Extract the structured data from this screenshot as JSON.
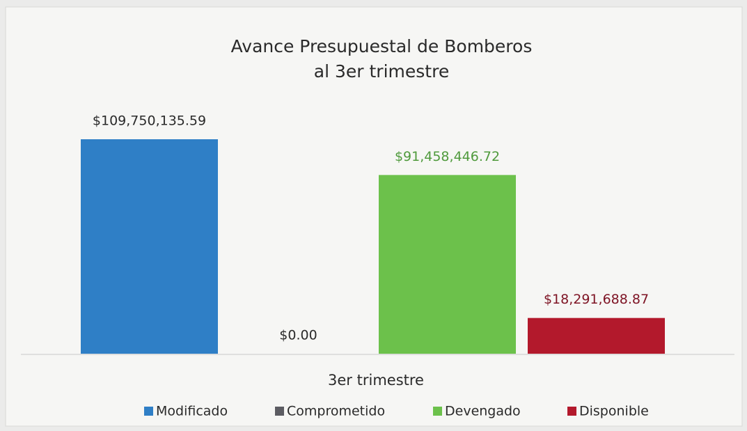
{
  "chart_data": {
    "type": "bar",
    "title": [
      "Avance Presupuestal de Bomberos",
      "al 3er trimestre"
    ],
    "categories": [
      "3er trimestre"
    ],
    "series": [
      {
        "name": "Modificado",
        "color": "#2f7fc6",
        "label_color": "#2a2a2a",
        "values": [
          109750135.59
        ],
        "value_labels": [
          "$109,750,135.59"
        ]
      },
      {
        "name": "Comprometido",
        "color": "#5c5c62",
        "label_color": "#2a2a2a",
        "values": [
          0
        ],
        "value_labels": [
          "$0.00"
        ]
      },
      {
        "name": "Devengado",
        "color": "#6cc14b",
        "label_color": "#4f9a3c",
        "values": [
          91458446.72
        ],
        "value_labels": [
          "$91,458,446.72"
        ]
      },
      {
        "name": "Disponible",
        "color": "#b3192c",
        "label_color": "#7e1424",
        "values": [
          18291688.87
        ],
        "value_labels": [
          "$18,291,688.87"
        ]
      }
    ],
    "legend": "bottom"
  }
}
